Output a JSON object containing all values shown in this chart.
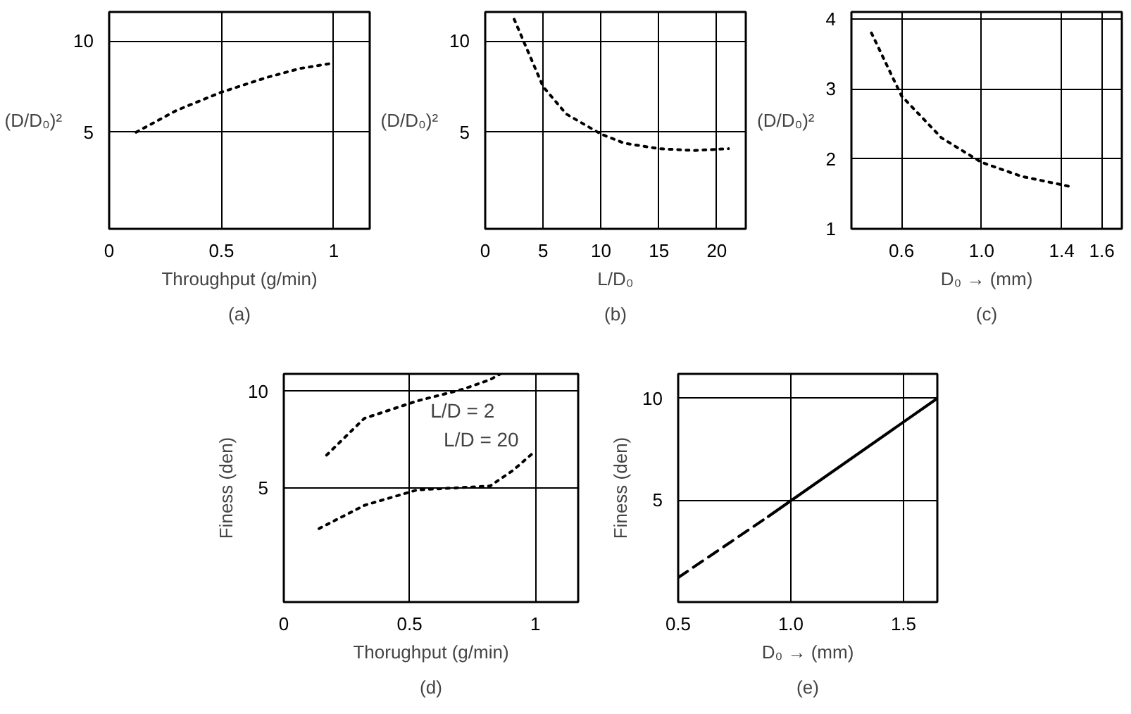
{
  "chart_data": [
    {
      "type": "line",
      "title": "(a)",
      "xlabel": "Throughput (g/min)",
      "ylabel": "(D/D₀)²",
      "xlim": [
        0,
        1.16
      ],
      "ylim": [
        -0.3,
        11.6
      ],
      "xticks": [
        0,
        0.5,
        1
      ],
      "yticks": [
        5,
        10
      ],
      "grid": true,
      "line_style": "dotted",
      "series": [
        {
          "color": "#000000",
          "x": [
            0.12,
            0.3,
            0.5,
            0.7,
            0.85,
            1.0
          ],
          "values": [
            5.0,
            6.2,
            7.2,
            8.0,
            8.5,
            8.8
          ]
        }
      ]
    },
    {
      "type": "line",
      "title": "(b)",
      "xlabel": "L/D₀",
      "ylabel": "(D/D₀)²",
      "xlim": [
        0,
        22.5
      ],
      "ylim": [
        -0.3,
        11.6
      ],
      "xticks": [
        0,
        5,
        10,
        15,
        20
      ],
      "yticks": [
        5,
        10
      ],
      "grid": true,
      "line_style": "dotted",
      "series": [
        {
          "color": "#000000",
          "x": [
            2.5,
            5,
            7,
            10,
            12,
            15,
            18,
            21
          ],
          "values": [
            11.2,
            7.5,
            6.0,
            4.9,
            4.4,
            4.1,
            4.0,
            4.1
          ]
        }
      ]
    },
    {
      "type": "line",
      "title": "(c)",
      "xlabel": "D₀ → (mm)",
      "ylabel": "(D/D₀)²",
      "xlim": [
        0.35,
        1.7
      ],
      "ylim": [
        1,
        4.1
      ],
      "xticks": [
        0.6,
        {
          "value": 1.0,
          "label": "1.0"
        },
        1.4,
        1.6
      ],
      "yticks": [
        1,
        2,
        3,
        4
      ],
      "grid": true,
      "line_style": "dotted",
      "series": [
        {
          "color": "#000000",
          "x": [
            0.45,
            0.6,
            0.8,
            1.0,
            1.2,
            1.45
          ],
          "values": [
            3.8,
            2.9,
            2.3,
            1.95,
            1.75,
            1.6
          ]
        }
      ]
    },
    {
      "type": "line",
      "title": "(d)",
      "xlabel": "Thorughput (g/min)",
      "ylabel": "Finess (den)",
      "xlim": [
        0,
        1.17
      ],
      "ylim": [
        -0.9,
        10.9
      ],
      "xticks": [
        0,
        0.5,
        1
      ],
      "yticks": [
        5,
        10
      ],
      "grid": true,
      "line_style": "dotted",
      "series": [
        {
          "name": "L/D = 2",
          "color": "#000000",
          "x": [
            0.17,
            0.32,
            0.53,
            0.71,
            0.82,
            0.86
          ],
          "values": [
            6.7,
            8.6,
            9.5,
            10.1,
            10.6,
            10.9
          ]
        },
        {
          "name": "L/D = 20",
          "color": "#000000",
          "x": [
            0.14,
            0.32,
            0.53,
            0.82,
            0.91,
            0.99
          ],
          "values": [
            2.9,
            4.1,
            4.9,
            5.1,
            5.9,
            6.8
          ]
        }
      ]
    },
    {
      "type": "line",
      "title": "(e)",
      "xlabel": "D₀ → (mm)",
      "ylabel": "Finess (den)",
      "xlim": [
        0.5,
        1.65
      ],
      "ylim": [
        0,
        11.2
      ],
      "xticks": [
        0.5,
        {
          "value": 1.0,
          "label": "1.0"
        },
        1.5
      ],
      "yticks": [
        5,
        10
      ],
      "grid": true,
      "series": [
        {
          "color": "#000000",
          "line_style": "dashed",
          "x": [
            0.5,
            0.9
          ],
          "values": [
            1.2,
            4.2
          ]
        },
        {
          "color": "#000000",
          "line_style": "solid",
          "x": [
            0.9,
            1.65
          ],
          "values": [
            4.2,
            10
          ]
        }
      ]
    }
  ]
}
